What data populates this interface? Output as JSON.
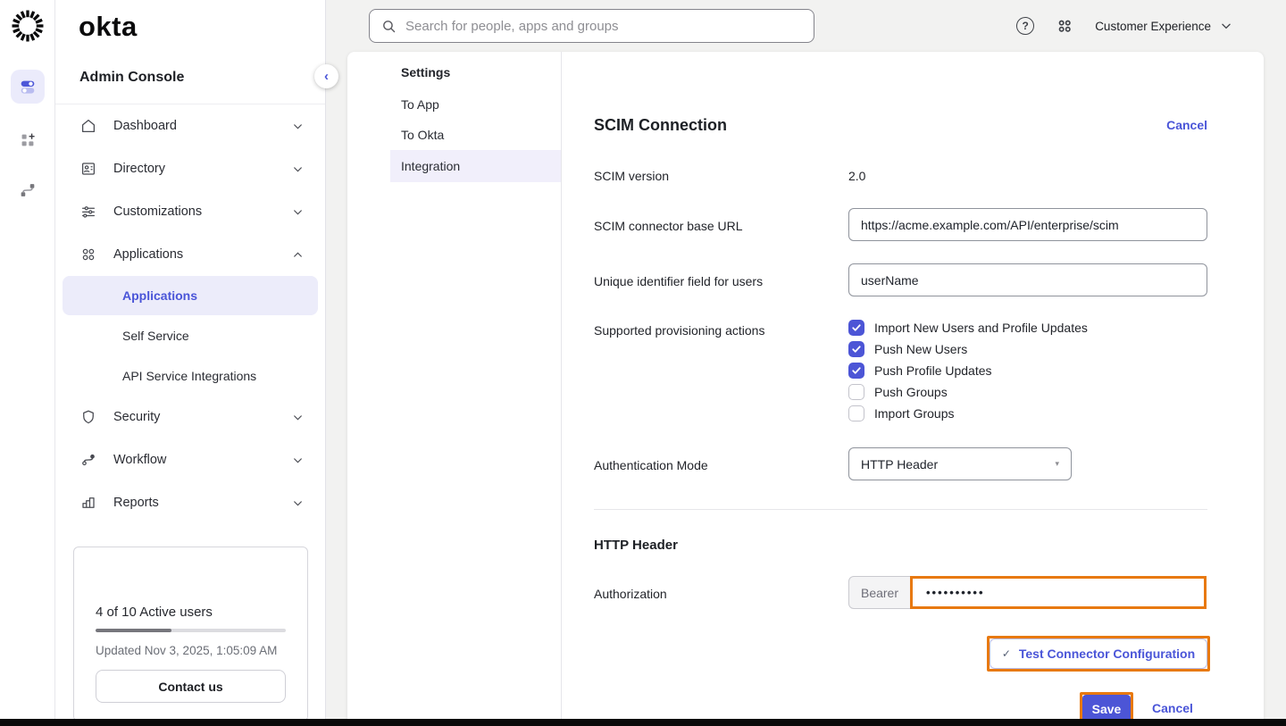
{
  "brand": {
    "logo": "okta",
    "product": "Admin Console"
  },
  "topbar": {
    "search_placeholder": "Search for people, apps and groups",
    "org_name": "Customer Experience"
  },
  "icons": {
    "help": "?",
    "collapse": "‹",
    "select_arrow": "▾",
    "test_check": "✓"
  },
  "colors": {
    "accent": "#4a55d8",
    "highlight_orange": "#e8790f",
    "active_row_bg": "#ececfa"
  },
  "sidebar": {
    "items": [
      {
        "label": "Dashboard"
      },
      {
        "label": "Directory"
      },
      {
        "label": "Customizations"
      },
      {
        "label": "Applications"
      },
      {
        "label": "Security"
      },
      {
        "label": "Workflow"
      },
      {
        "label": "Reports"
      }
    ],
    "sub_items": [
      {
        "label": "Applications",
        "active": true
      },
      {
        "label": "Self Service",
        "active": false
      },
      {
        "label": "API Service Integrations",
        "active": false
      }
    ],
    "usage": {
      "text": "4 of 10 Active users",
      "progress_pct": 40,
      "updated": "Updated Nov 3, 2025, 1:05:09 AM",
      "contact_label": "Contact us"
    }
  },
  "subnav": {
    "header": "Settings",
    "items": [
      {
        "label": "To App",
        "active": false
      },
      {
        "label": "To Okta",
        "active": false
      },
      {
        "label": "Integration",
        "active": true
      }
    ]
  },
  "form": {
    "title": "SCIM Connection",
    "cancel_label": "Cancel",
    "scim_version_label": "SCIM version",
    "scim_version_value": "2.0",
    "base_url_label": "SCIM connector base URL",
    "base_url_value": "https://acme.example.com/API/enterprise/scim",
    "uid_label": "Unique identifier field for users",
    "uid_value": "userName",
    "provisioning_label": "Supported provisioning actions",
    "provisioning_options": [
      {
        "label": "Import New Users and Profile Updates",
        "checked": true
      },
      {
        "label": "Push New Users",
        "checked": true
      },
      {
        "label": "Push Profile Updates",
        "checked": true
      },
      {
        "label": "Push Groups",
        "checked": false
      },
      {
        "label": "Import Groups",
        "checked": false
      }
    ],
    "auth_mode_label": "Authentication Mode",
    "auth_mode_value": "HTTP Header",
    "http_header_title": "HTTP Header",
    "authorization_label": "Authorization",
    "bearer_prefix": "Bearer",
    "token_masked": "••••••••••",
    "test_button_label": "Test Connector Configuration",
    "save_label": "Save",
    "cancel_bottom_label": "Cancel"
  }
}
